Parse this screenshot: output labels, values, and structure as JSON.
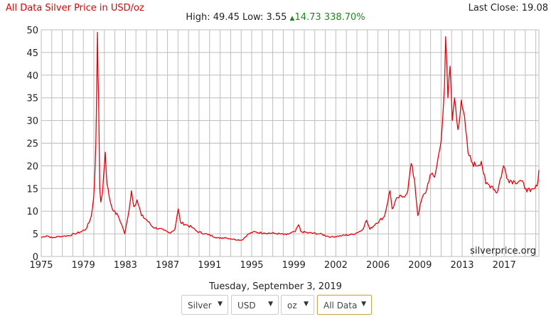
{
  "header": {
    "title": "All Data Silver Price in USD/oz",
    "last_close": "Last Close: 19.08",
    "high_low": "High: 49.45 Low: 3.55",
    "change_icon": "triangle-up-icon",
    "change": "14.73 338.70%"
  },
  "colors": {
    "line": "#e8000a",
    "grid": "#bdbdbd",
    "up": "#1a8a1a",
    "title": "#e00000"
  },
  "watermark": "silverprice.org",
  "date": "Tuesday, September 3, 2019",
  "controls": {
    "metal": "Silver",
    "currency": "USD",
    "unit": "oz",
    "range": "All Data",
    "arrow": "▼"
  },
  "chart_data": {
    "type": "line",
    "title": "All Data Silver Price in USD/oz",
    "xlabel": "",
    "ylabel": "",
    "xlim": [
      1975,
      2019.67
    ],
    "ylim": [
      0,
      50
    ],
    "yticks": [
      "0",
      "5",
      "10",
      "15",
      "20",
      "25",
      "30",
      "35",
      "40",
      "45",
      "50"
    ],
    "xticks": [
      "1975",
      "1979",
      "1983",
      "1987",
      "1991",
      "1995",
      "1999",
      "2002",
      "2006",
      "2009",
      "2013",
      "2017"
    ],
    "grid": true,
    "series": [
      {
        "name": "Silver USD/oz",
        "points": [
          [
            1975,
            4.2
          ],
          [
            1975.5,
            4.6
          ],
          [
            1976,
            4.1
          ],
          [
            1976.5,
            4.4
          ],
          [
            1977,
            4.5
          ],
          [
            1977.5,
            4.6
          ],
          [
            1978,
            5.0
          ],
          [
            1978.5,
            5.4
          ],
          [
            1979,
            6.0
          ],
          [
            1979.3,
            7.5
          ],
          [
            1979.5,
            9
          ],
          [
            1979.7,
            13
          ],
          [
            1979.8,
            17
          ],
          [
            1979.9,
            25
          ],
          [
            1979.95,
            32
          ],
          [
            1980.05,
            49.45
          ],
          [
            1980.1,
            40
          ],
          [
            1980.15,
            35
          ],
          [
            1980.25,
            15
          ],
          [
            1980.35,
            12
          ],
          [
            1980.5,
            14
          ],
          [
            1980.6,
            18
          ],
          [
            1980.75,
            23
          ],
          [
            1980.9,
            16
          ],
          [
            1981.2,
            12
          ],
          [
            1981.5,
            10
          ],
          [
            1981.9,
            9
          ],
          [
            1982.3,
            6.5
          ],
          [
            1982.5,
            5
          ],
          [
            1982.8,
            9
          ],
          [
            1983.1,
            14.5
          ],
          [
            1983.3,
            11
          ],
          [
            1983.6,
            12.5
          ],
          [
            1984,
            9
          ],
          [
            1984.5,
            8
          ],
          [
            1985,
            6.5
          ],
          [
            1986,
            5.8
          ],
          [
            1986.5,
            5.2
          ],
          [
            1987,
            6
          ],
          [
            1987.3,
            10.5
          ],
          [
            1987.5,
            7.5
          ],
          [
            1988,
            7
          ],
          [
            1988.5,
            6.5
          ],
          [
            1989,
            5.5
          ],
          [
            1990,
            4.8
          ],
          [
            1991,
            4.0
          ],
          [
            1991.5,
            4.2
          ],
          [
            1992,
            3.9
          ],
          [
            1993,
            3.6
          ],
          [
            1993.5,
            4.8
          ],
          [
            1994,
            5.4
          ],
          [
            1995,
            5.2
          ],
          [
            1996,
            5.1
          ],
          [
            1997,
            4.8
          ],
          [
            1997.8,
            5.5
          ],
          [
            1998.1,
            7.0
          ],
          [
            1998.3,
            5.5
          ],
          [
            1999,
            5.2
          ],
          [
            2000,
            5.0
          ],
          [
            2001,
            4.3
          ],
          [
            2002,
            4.6
          ],
          [
            2003,
            4.9
          ],
          [
            2003.8,
            5.8
          ],
          [
            2004.2,
            8.0
          ],
          [
            2004.5,
            6.0
          ],
          [
            2005,
            7.2
          ],
          [
            2005.8,
            8.8
          ],
          [
            2006.3,
            14.5
          ],
          [
            2006.5,
            10.5
          ],
          [
            2007,
            13
          ],
          [
            2007.5,
            13.2
          ],
          [
            2007.9,
            14.5
          ],
          [
            2008.2,
            20.5
          ],
          [
            2008.5,
            17
          ],
          [
            2008.8,
            9
          ],
          [
            2009.2,
            13
          ],
          [
            2009.5,
            14
          ],
          [
            2009.9,
            18
          ],
          [
            2010.3,
            17.5
          ],
          [
            2010.8,
            24
          ],
          [
            2011.0,
            29
          ],
          [
            2011.2,
            38
          ],
          [
            2011.3,
            48.5
          ],
          [
            2011.5,
            35
          ],
          [
            2011.7,
            42
          ],
          [
            2011.9,
            30
          ],
          [
            2012.1,
            35
          ],
          [
            2012.4,
            28
          ],
          [
            2012.7,
            34.5
          ],
          [
            2012.9,
            32
          ],
          [
            2013.3,
            23
          ],
          [
            2013.6,
            21
          ],
          [
            2014,
            20
          ],
          [
            2014.5,
            21
          ],
          [
            2014.9,
            16
          ],
          [
            2015.5,
            15.5
          ],
          [
            2015.9,
            14
          ],
          [
            2016.5,
            20
          ],
          [
            2016.9,
            17
          ],
          [
            2017.5,
            16.5
          ],
          [
            2018,
            16.8
          ],
          [
            2018.5,
            15
          ],
          [
            2018.9,
            14.3
          ],
          [
            2019.3,
            15
          ],
          [
            2019.5,
            15.5
          ],
          [
            2019.67,
            19.08
          ]
        ]
      }
    ]
  }
}
